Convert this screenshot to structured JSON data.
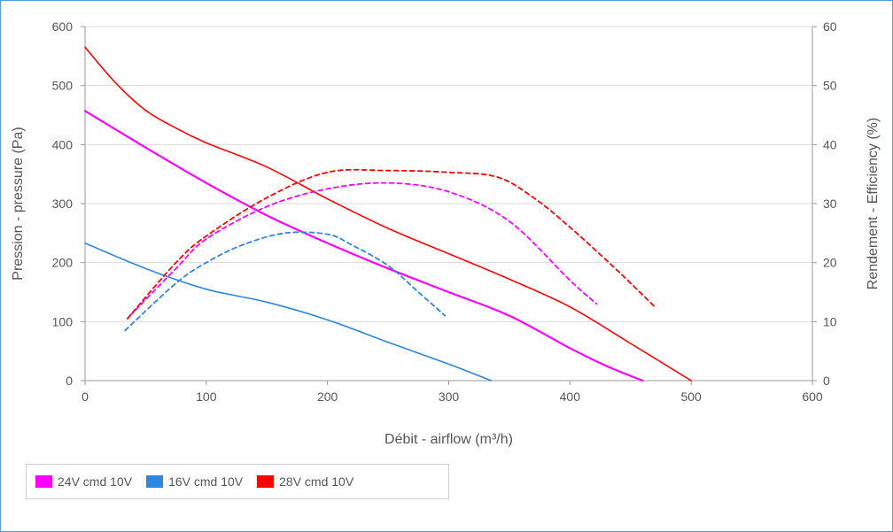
{
  "chart_data": {
    "type": "line",
    "xlabel": "Débit - airflow (m³/h)",
    "ylabel_left": "Pression - pressure (Pa)",
    "ylabel_right": "Rendement - Efficiency (%)",
    "xlim": [
      0,
      600
    ],
    "ylim_left": [
      0,
      600
    ],
    "ylim_right": [
      0,
      60
    ],
    "x_ticks": [
      0,
      100,
      200,
      300,
      400,
      500,
      600
    ],
    "y_left_ticks": [
      0,
      100,
      200,
      300,
      400,
      500,
      600
    ],
    "y_right_ticks": [
      0,
      10,
      20,
      30,
      40,
      50,
      60
    ],
    "grid": true,
    "legend_position": "bottom-left",
    "legend": [
      {
        "label": "24V cmd 10V",
        "color": "#ff00ff"
      },
      {
        "label": "16V cmd 10V",
        "color": "#2e86de"
      },
      {
        "label": "28V cmd 10V",
        "color": "#ff0000"
      }
    ],
    "series": [
      {
        "legend_index": 0,
        "color": "#ff00ff",
        "style": "solid",
        "axis": "left",
        "x": [
          0,
          50,
          100,
          150,
          200,
          250,
          300,
          350,
          400,
          430,
          460
        ],
        "y": [
          457,
          395,
          335,
          280,
          233,
          190,
          150,
          110,
          55,
          25,
          0
        ]
      },
      {
        "legend_index": 1,
        "color": "#2e86de",
        "style": "solid",
        "axis": "left",
        "x": [
          0,
          50,
          100,
          150,
          200,
          250,
          300,
          335
        ],
        "y": [
          233,
          190,
          155,
          133,
          103,
          65,
          28,
          0
        ]
      },
      {
        "legend_index": 2,
        "color": "#ff0000",
        "style": "solid",
        "axis": "left",
        "x": [
          0,
          25,
          50,
          75,
          100,
          150,
          200,
          250,
          300,
          350,
          400,
          450,
          500
        ],
        "y": [
          565,
          505,
          458,
          428,
          403,
          362,
          308,
          258,
          215,
          172,
          125,
          63,
          0
        ]
      },
      {
        "legend_index": 0,
        "color": "#ff00ff",
        "style": "dashed",
        "axis": "right",
        "x": [
          37,
          75,
          100,
          150,
          200,
          250,
          300,
          350,
          400,
          422
        ],
        "y": [
          11,
          19,
          24,
          29.5,
          32.5,
          33.5,
          32,
          27,
          17,
          13
        ]
      },
      {
        "legend_index": 1,
        "color": "#2e86de",
        "style": "dashed",
        "axis": "right",
        "x": [
          33,
          75,
          100,
          130,
          165,
          200,
          220,
          250,
          275,
          297
        ],
        "y": [
          8.5,
          16.5,
          20,
          23,
          25,
          24.8,
          23,
          19.5,
          15,
          11
        ]
      },
      {
        "legend_index": 2,
        "color": "#ff0000",
        "style": "dashed",
        "axis": "right",
        "x": [
          35,
          75,
          100,
          150,
          200,
          250,
          300,
          340,
          370,
          400,
          440,
          470
        ],
        "y": [
          10.5,
          20,
          24.5,
          31,
          35.3,
          35.6,
          35.3,
          34.5,
          31,
          26,
          18.5,
          12.5
        ]
      }
    ]
  }
}
